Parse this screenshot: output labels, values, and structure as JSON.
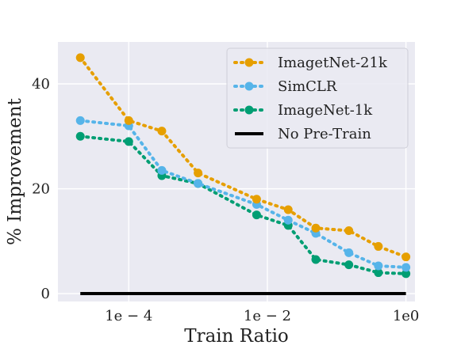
{
  "chart_data": {
    "type": "line",
    "title": "",
    "xlabel": "Train Ratio",
    "ylabel": "% Improvement",
    "xscale": "log",
    "xlim": [
      9.5e-06,
      1.35
    ],
    "ylim": [
      -1.5,
      48
    ],
    "grid": true,
    "legend_position": "top-right",
    "x_ticks": [
      {
        "value": 0.0001,
        "label": "1e − 4"
      },
      {
        "value": 0.01,
        "label": "1e − 2"
      },
      {
        "value": 1,
        "label": "1e0"
      }
    ],
    "y_ticks": [
      {
        "value": 0,
        "label": "0"
      },
      {
        "value": 20,
        "label": "20"
      },
      {
        "value": 40,
        "label": "40"
      }
    ],
    "x": [
      2e-05,
      0.0001,
      0.0003,
      0.001,
      0.007,
      0.02,
      0.05,
      0.15,
      0.4,
      1
    ],
    "series": [
      {
        "name": "ImagetNet-21k",
        "color": "#E69F00",
        "style": "dotted-markers",
        "values": [
          45,
          33,
          31,
          23,
          18,
          16,
          12.5,
          12,
          9,
          7
        ]
      },
      {
        "name": "SimCLR",
        "color": "#56B4E9",
        "style": "dotted-markers",
        "values": [
          33,
          32,
          23.5,
          21,
          17,
          14,
          11.5,
          7.8,
          5.3,
          5
        ]
      },
      {
        "name": "ImageNet-1k",
        "color": "#009E73",
        "style": "dotted-markers",
        "values": [
          30,
          29,
          22.5,
          21,
          15,
          13,
          6.5,
          5.5,
          4,
          3.8
        ]
      },
      {
        "name": "No Pre-Train",
        "color": "#000000",
        "style": "solid",
        "values": [
          0,
          0,
          0,
          0,
          0,
          0,
          0,
          0,
          0,
          0
        ]
      }
    ]
  }
}
